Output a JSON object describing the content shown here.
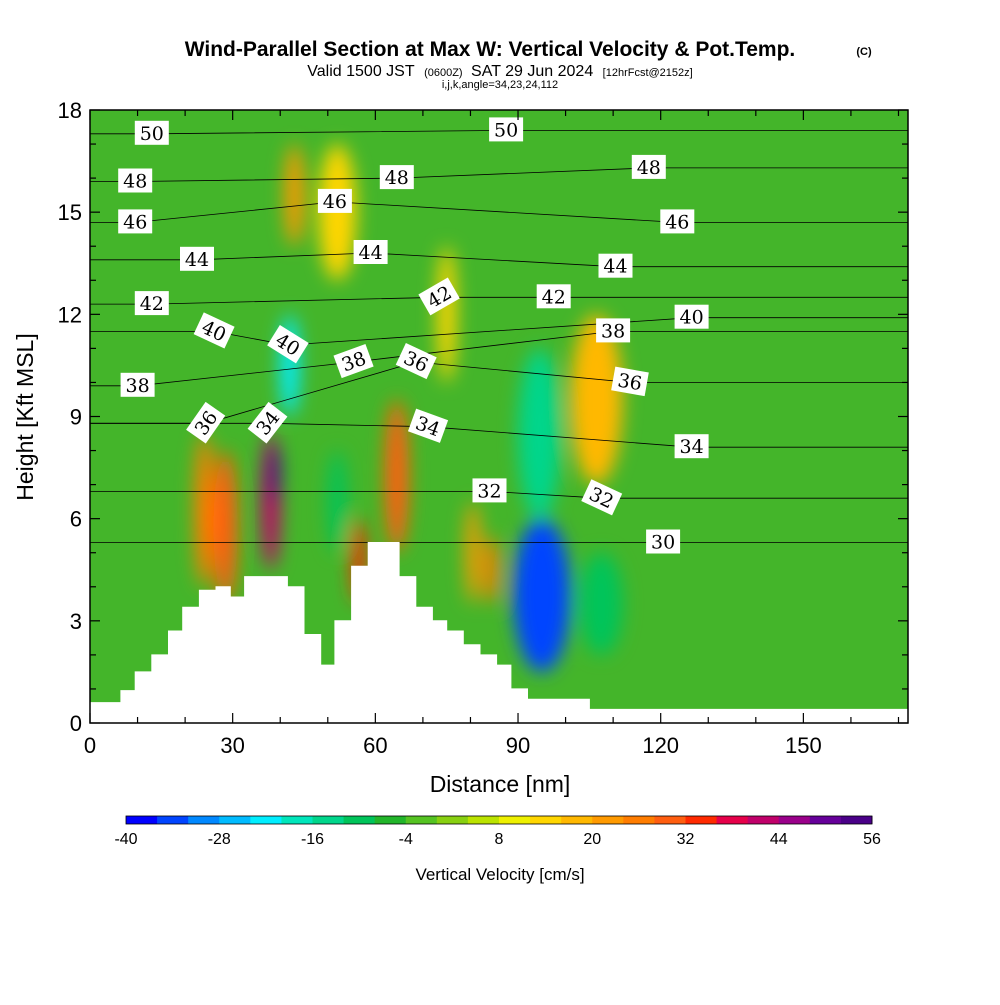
{
  "chart_data": {
    "type": "heatmap",
    "title": "Wind-Parallel Section at Max W: Vertical Velocity & Pot.Temp.",
    "title_tag": "(C)",
    "subtitle": {
      "valid_prefix": "Valid 1500 JST",
      "utc": "(0600Z)",
      "date": "SAT 29 Jun 2024",
      "forecast": "[12hrFcst@2152z]",
      "indices": "i,j,k,angle=34,23,24,112"
    },
    "xlabel": "Distance [nm]",
    "ylabel": "Height [Kft MSL]",
    "xlim": [
      0,
      172
    ],
    "ylim": [
      0,
      18
    ],
    "xticks": [
      0,
      30,
      60,
      90,
      120,
      150
    ],
    "yticks": [
      0,
      3,
      6,
      9,
      12,
      15,
      18
    ],
    "grid": false,
    "colorbar": {
      "label": "Vertical Velocity [cm/s]",
      "min": -40,
      "max": 56,
      "step": 4,
      "tick_labels": [
        -40,
        -28,
        -16,
        -4,
        8,
        20,
        32,
        44,
        56
      ],
      "colors": [
        "#0000ff",
        "#0044ff",
        "#0088ff",
        "#00bbff",
        "#00eeff",
        "#00e6bb",
        "#00d68b",
        "#00c45a",
        "#22b52a",
        "#55c322",
        "#88d011",
        "#bbe300",
        "#eef000",
        "#ffd600",
        "#ffb800",
        "#ff9a00",
        "#ff7d00",
        "#ff5e10",
        "#ff2a00",
        "#e6004a",
        "#c0006a",
        "#9a008a",
        "#66009a",
        "#4a0088"
      ]
    },
    "terrain_kft": [
      [
        0,
        0.6
      ],
      [
        6.5,
        0.6
      ],
      [
        6.5,
        0.95
      ],
      [
        9.5,
        0.95
      ],
      [
        9.5,
        1.5
      ],
      [
        13,
        1.5
      ],
      [
        13,
        2
      ],
      [
        16.5,
        2
      ],
      [
        16.5,
        2.7
      ],
      [
        19.5,
        2.7
      ],
      [
        19.5,
        3.4
      ],
      [
        23,
        3.4
      ],
      [
        23,
        3.9
      ],
      [
        26.5,
        3.9
      ],
      [
        26.5,
        4
      ],
      [
        29.5,
        4
      ],
      [
        29.5,
        3.7
      ],
      [
        32.5,
        3.7
      ],
      [
        32.5,
        4.3
      ],
      [
        41.5,
        4.3
      ],
      [
        41.5,
        4
      ],
      [
        45,
        4
      ],
      [
        45,
        2.6
      ],
      [
        48.5,
        2.6
      ],
      [
        48.5,
        1.7
      ],
      [
        51.5,
        1.7
      ],
      [
        51.5,
        3
      ],
      [
        55,
        3
      ],
      [
        55,
        4.6
      ],
      [
        58.5,
        4.6
      ],
      [
        58.5,
        5.3
      ],
      [
        65,
        5.3
      ],
      [
        65,
        4.3
      ],
      [
        68.5,
        4.3
      ],
      [
        68.5,
        3.4
      ],
      [
        72,
        3.4
      ],
      [
        72,
        3
      ],
      [
        75,
        3
      ],
      [
        75,
        2.7
      ],
      [
        78.5,
        2.7
      ],
      [
        78.5,
        2.3
      ],
      [
        82,
        2.3
      ],
      [
        82,
        2
      ],
      [
        85.5,
        2
      ],
      [
        85.5,
        1.7
      ],
      [
        88.5,
        1.7
      ],
      [
        88.5,
        1
      ],
      [
        92,
        1
      ],
      [
        92,
        0.7
      ],
      [
        105,
        0.7
      ],
      [
        105,
        0.4
      ],
      [
        172,
        0.4
      ]
    ],
    "vertical_velocity_cells_cm_s": [
      {
        "x": [
          22,
          26
        ],
        "y": [
          4,
          8.5
        ],
        "w": 24
      },
      {
        "x": [
          26,
          31
        ],
        "y": [
          3.5,
          8
        ],
        "w": 30
      },
      {
        "x": [
          36,
          40
        ],
        "y": [
          4.5,
          8.5
        ],
        "w": 40
      },
      {
        "x": [
          37.5,
          40
        ],
        "y": [
          6.5,
          8.2
        ],
        "w": 52
      },
      {
        "x": [
          40,
          44
        ],
        "y": [
          9,
          12
        ],
        "w": -24
      },
      {
        "x": [
          41,
          45
        ],
        "y": [
          14,
          17
        ],
        "w": 20
      },
      {
        "x": [
          48,
          56
        ],
        "y": [
          13,
          17
        ],
        "w": 14
      },
      {
        "x": [
          50,
          54
        ],
        "y": [
          5,
          8
        ],
        "w": -12
      },
      {
        "x": [
          55,
          58
        ],
        "y": [
          3.5,
          6
        ],
        "w": 34
      },
      {
        "x": [
          62,
          67
        ],
        "y": [
          5,
          9.5
        ],
        "w": 28
      },
      {
        "x": [
          73,
          77
        ],
        "y": [
          10,
          14
        ],
        "w": 14
      },
      {
        "x": [
          79,
          82
        ],
        "y": [
          3.5,
          6.5
        ],
        "w": 22
      },
      {
        "x": [
          83,
          86
        ],
        "y": [
          3.5,
          5.5
        ],
        "w": 26
      },
      {
        "x": [
          89,
          101
        ],
        "y": [
          1.5,
          6
        ],
        "w": -36
      },
      {
        "x": [
          90,
          99
        ],
        "y": [
          6,
          11
        ],
        "w": -16
      },
      {
        "x": [
          103,
          112
        ],
        "y": [
          2,
          5
        ],
        "w": -12
      },
      {
        "x": [
          101,
          112
        ],
        "y": [
          7,
          12
        ],
        "w": 18
      }
    ],
    "isentrope_labels_C": [
      {
        "text": "50",
        "x": 13,
        "z": 17.3,
        "angle": 0
      },
      {
        "text": "50",
        "x": 87.5,
        "z": 17.4,
        "angle": 0
      },
      {
        "text": "48",
        "x": 9.5,
        "z": 15.9,
        "angle": 0
      },
      {
        "text": "48",
        "x": 64.5,
        "z": 16,
        "angle": 0
      },
      {
        "text": "48",
        "x": 117.5,
        "z": 16.3,
        "angle": 0
      },
      {
        "text": "46",
        "x": 9.5,
        "z": 14.7,
        "angle": 0
      },
      {
        "text": "46",
        "x": 51.5,
        "z": 15.3,
        "angle": 0
      },
      {
        "text": "46",
        "x": 123.5,
        "z": 14.7,
        "angle": 0
      },
      {
        "text": "44",
        "x": 22.5,
        "z": 13.6,
        "angle": 0
      },
      {
        "text": "44",
        "x": 59,
        "z": 13.8,
        "angle": 0
      },
      {
        "text": "44",
        "x": 110.5,
        "z": 13.4,
        "angle": 0
      },
      {
        "text": "42",
        "x": 13,
        "z": 12.3,
        "angle": 0
      },
      {
        "text": "42",
        "x": 73.5,
        "z": 12.5,
        "angle": -30
      },
      {
        "text": "42",
        "x": 97.5,
        "z": 12.5,
        "angle": 0
      },
      {
        "text": "40",
        "x": 26,
        "z": 11.5,
        "angle": 25
      },
      {
        "text": "40",
        "x": 41.5,
        "z": 11.1,
        "angle": 32
      },
      {
        "text": "40",
        "x": 126.5,
        "z": 11.9,
        "angle": 0
      },
      {
        "text": "38",
        "x": 10,
        "z": 9.9,
        "angle": 0
      },
      {
        "text": "38",
        "x": 55.5,
        "z": 10.6,
        "angle": -20
      },
      {
        "text": "38",
        "x": 110,
        "z": 11.5,
        "angle": 0
      },
      {
        "text": "36",
        "x": 24.5,
        "z": 8.8,
        "angle": -55
      },
      {
        "text": "36",
        "x": 68.5,
        "z": 10.6,
        "angle": 25
      },
      {
        "text": "36",
        "x": 113.5,
        "z": 10,
        "angle": 10
      },
      {
        "text": "34",
        "x": 37.5,
        "z": 8.8,
        "angle": -52
      },
      {
        "text": "34",
        "x": 71,
        "z": 8.7,
        "angle": 20
      },
      {
        "text": "34",
        "x": 126.5,
        "z": 8.1,
        "angle": 0
      },
      {
        "text": "32",
        "x": 84,
        "z": 6.8,
        "angle": 0
      },
      {
        "text": "32",
        "x": 107.5,
        "z": 6.6,
        "angle": 25
      },
      {
        "text": "30",
        "x": 120.5,
        "z": 5.3,
        "angle": 0
      }
    ]
  }
}
